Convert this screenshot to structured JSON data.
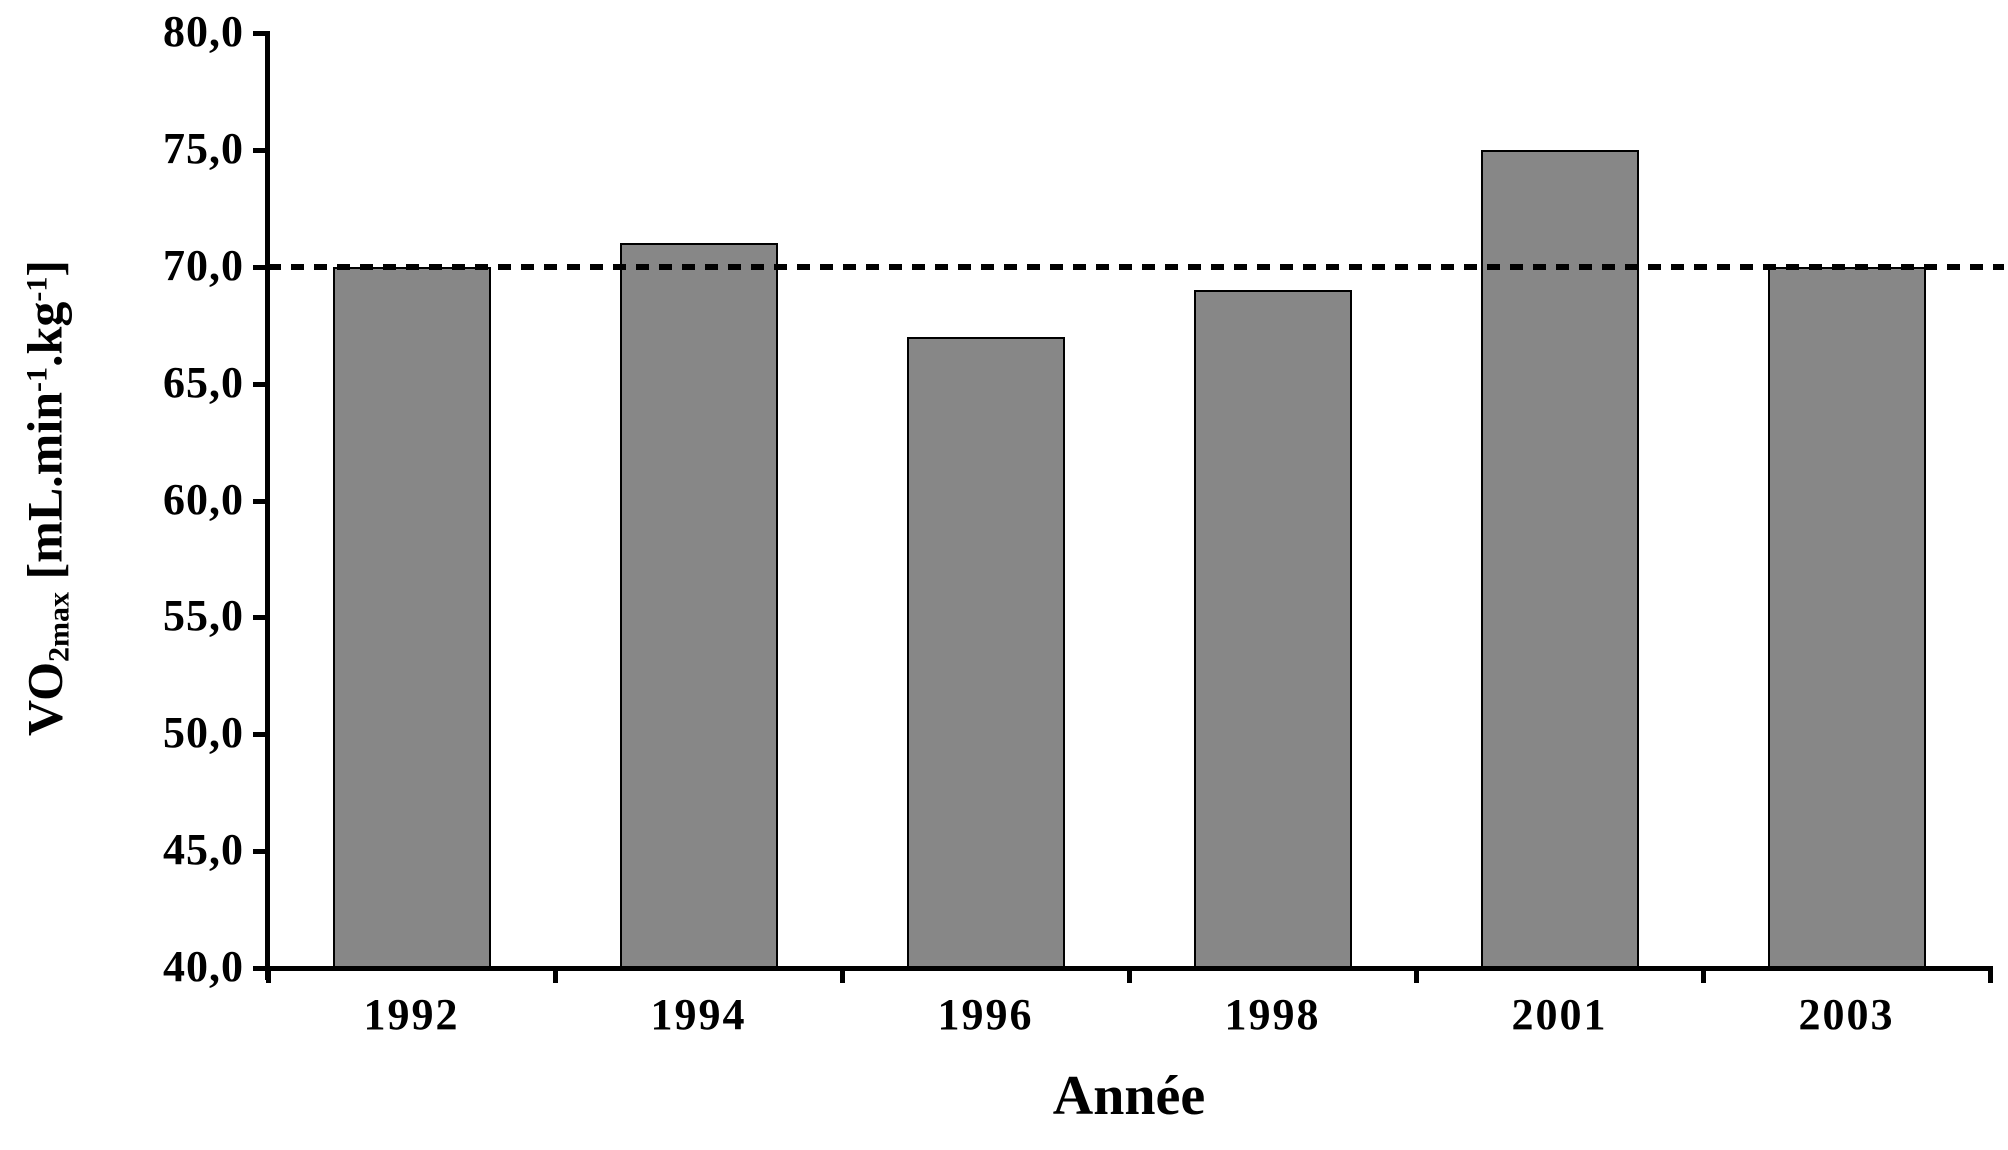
{
  "chart_data": {
    "type": "bar",
    "title": "",
    "categories": [
      "1992",
      "1994",
      "1996",
      "1998",
      "2001",
      "2003"
    ],
    "values": [
      70.0,
      71.0,
      67.0,
      69.0,
      75.0,
      70.0
    ],
    "xlabel": "Année",
    "ylabel": "VO2max [mL.min-1.kg-1]",
    "ylabel_parts": [
      {
        "text": "VO",
        "script": "normal"
      },
      {
        "text": "2max",
        "script": "sub"
      },
      {
        "text": " [mL.min",
        "script": "normal"
      },
      {
        "text": "-1",
        "script": "sup"
      },
      {
        "text": ".kg",
        "script": "normal"
      },
      {
        "text": "-1",
        "script": "sup"
      },
      {
        "text": "]",
        "script": "normal"
      }
    ],
    "ylim": [
      40,
      80
    ],
    "ytick_step": 5,
    "yticks": [
      {
        "value": 40,
        "label": "40,0"
      },
      {
        "value": 45,
        "label": "45,0"
      },
      {
        "value": 50,
        "label": "50,0"
      },
      {
        "value": 55,
        "label": "55,0"
      },
      {
        "value": 60,
        "label": "60,0"
      },
      {
        "value": 65,
        "label": "65,0"
      },
      {
        "value": 70,
        "label": "70,0"
      },
      {
        "value": 75,
        "label": "75,0"
      },
      {
        "value": 80,
        "label": "80,0"
      }
    ],
    "decimal_separator": ",",
    "reference_line": {
      "value": 70.0,
      "style": "dashed",
      "color": "#000000"
    },
    "bar_fill_color": "#878787",
    "bar_border_color": "#000000",
    "axis_color": "#000000",
    "background_color": "#ffffff",
    "grid": false,
    "legend_position": "none"
  }
}
